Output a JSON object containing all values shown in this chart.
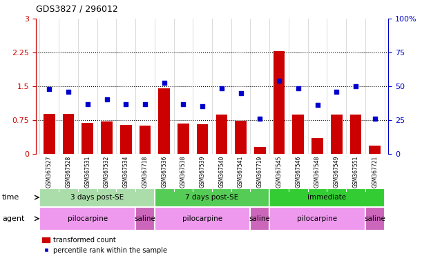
{
  "title": "GDS3827 / 296012",
  "samples": [
    "GSM367527",
    "GSM367528",
    "GSM367531",
    "GSM367532",
    "GSM367534",
    "GSM367718",
    "GSM367536",
    "GSM367538",
    "GSM367539",
    "GSM367540",
    "GSM367541",
    "GSM367719",
    "GSM367545",
    "GSM367546",
    "GSM367548",
    "GSM367549",
    "GSM367551",
    "GSM367721"
  ],
  "bar_values": [
    0.88,
    0.88,
    0.68,
    0.72,
    0.64,
    0.63,
    1.45,
    0.67,
    0.65,
    0.87,
    0.73,
    0.15,
    2.28,
    0.87,
    0.35,
    0.87,
    0.87,
    0.18
  ],
  "scatter_values": [
    1.44,
    1.38,
    1.1,
    1.2,
    1.1,
    1.1,
    1.57,
    1.1,
    1.05,
    1.45,
    1.35,
    0.77,
    1.62,
    1.45,
    1.08,
    1.38,
    1.5,
    0.77
  ],
  "bar_color": "#cc0000",
  "scatter_color": "#0000cc",
  "ylim_left": [
    0,
    3
  ],
  "ylim_right": [
    0,
    100
  ],
  "yticks_left": [
    0,
    0.75,
    1.5,
    2.25,
    3
  ],
  "yticks_right": [
    0,
    25,
    50,
    75,
    100
  ],
  "ytick_labels_left": [
    "0",
    "0.75",
    "1.5",
    "2.25",
    "3"
  ],
  "ytick_labels_right": [
    "0",
    "25",
    "50",
    "75",
    "100%"
  ],
  "hlines": [
    0.75,
    1.5,
    2.25
  ],
  "time_groups": [
    {
      "label": "3 days post-SE",
      "start": 0,
      "end": 6,
      "color": "#aaddaa"
    },
    {
      "label": "7 days post-SE",
      "start": 6,
      "end": 12,
      "color": "#55cc55"
    },
    {
      "label": "immediate",
      "start": 12,
      "end": 18,
      "color": "#33cc33"
    }
  ],
  "agent_groups": [
    {
      "label": "pilocarpine",
      "start": 0,
      "end": 5,
      "color": "#ee99ee"
    },
    {
      "label": "saline",
      "start": 5,
      "end": 6,
      "color": "#cc66bb"
    },
    {
      "label": "pilocarpine",
      "start": 6,
      "end": 11,
      "color": "#ee99ee"
    },
    {
      "label": "saline",
      "start": 11,
      "end": 12,
      "color": "#cc66bb"
    },
    {
      "label": "pilocarpine",
      "start": 12,
      "end": 17,
      "color": "#ee99ee"
    },
    {
      "label": "saline",
      "start": 17,
      "end": 18,
      "color": "#cc66bb"
    }
  ],
  "legend_bar_label": "transformed count",
  "legend_scatter_label": "percentile rank within the sample",
  "tick_label_color_left": "#cc0000",
  "tick_label_color_right": "#0000cc",
  "xtick_bg_color": "#dddddd"
}
